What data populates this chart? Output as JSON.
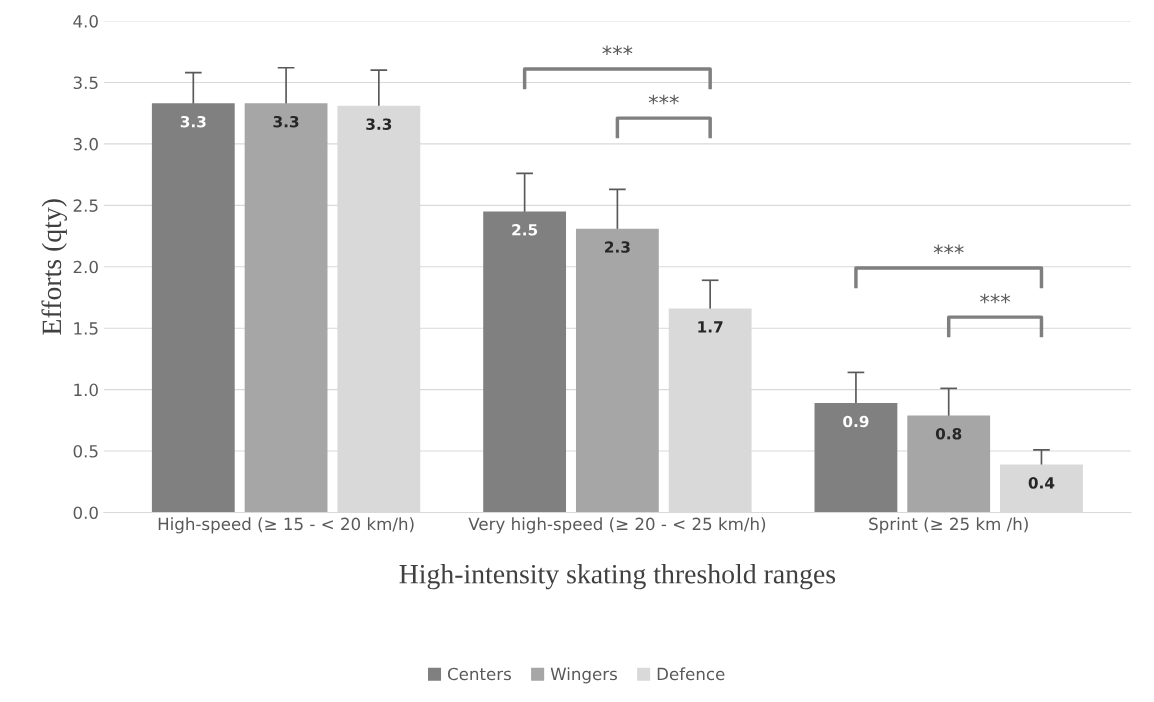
{
  "chart_data": {
    "type": "bar",
    "xlabel": "High-intensity skating threshold ranges",
    "ylabel": "Efforts (qty)",
    "categories": [
      "High-speed (≥ 15 - < 20 km/h)",
      "Very high-speed (≥ 20 - < 25 km/h)",
      "Sprint (≥ 25 km /h)"
    ],
    "series": [
      {
        "name": "Centers",
        "color": "#808080",
        "values": [
          3.33,
          2.45,
          0.89
        ],
        "errors": [
          0.25,
          0.31,
          0.25
        ],
        "value_labels": [
          "3.3",
          "2.5",
          "0.9"
        ]
      },
      {
        "name": "Wingers",
        "color": "#a6a6a6",
        "values": [
          3.33,
          2.31,
          0.79
        ],
        "errors": [
          0.29,
          0.32,
          0.22
        ],
        "value_labels": [
          "3.3",
          "2.3",
          "0.8"
        ]
      },
      {
        "name": "Defence",
        "color": "#d9d9d9",
        "values": [
          3.31,
          1.66,
          0.39
        ],
        "errors": [
          0.29,
          0.23,
          0.12
        ],
        "value_labels": [
          "3.3",
          "1.7",
          "0.4"
        ]
      }
    ],
    "annotations": [
      "***",
      "***",
      "***",
      "***"
    ],
    "ylim": [
      0,
      4.0
    ],
    "yticks": [
      {
        "value": 0,
        "label": "0.0"
      },
      {
        "value": 0.5,
        "label": "0.5"
      },
      {
        "value": 1.0,
        "label": "1.0"
      },
      {
        "value": 1.5,
        "label": "1.5"
      },
      {
        "value": 2.0,
        "label": "2.0"
      },
      {
        "value": 2.5,
        "label": "2.5"
      },
      {
        "value": 3.0,
        "label": "3.0"
      },
      {
        "value": 3.5,
        "label": "3.5"
      },
      {
        "value": 4.0,
        "label": "4.0"
      }
    ],
    "grid": "y",
    "legend": "bottom"
  }
}
